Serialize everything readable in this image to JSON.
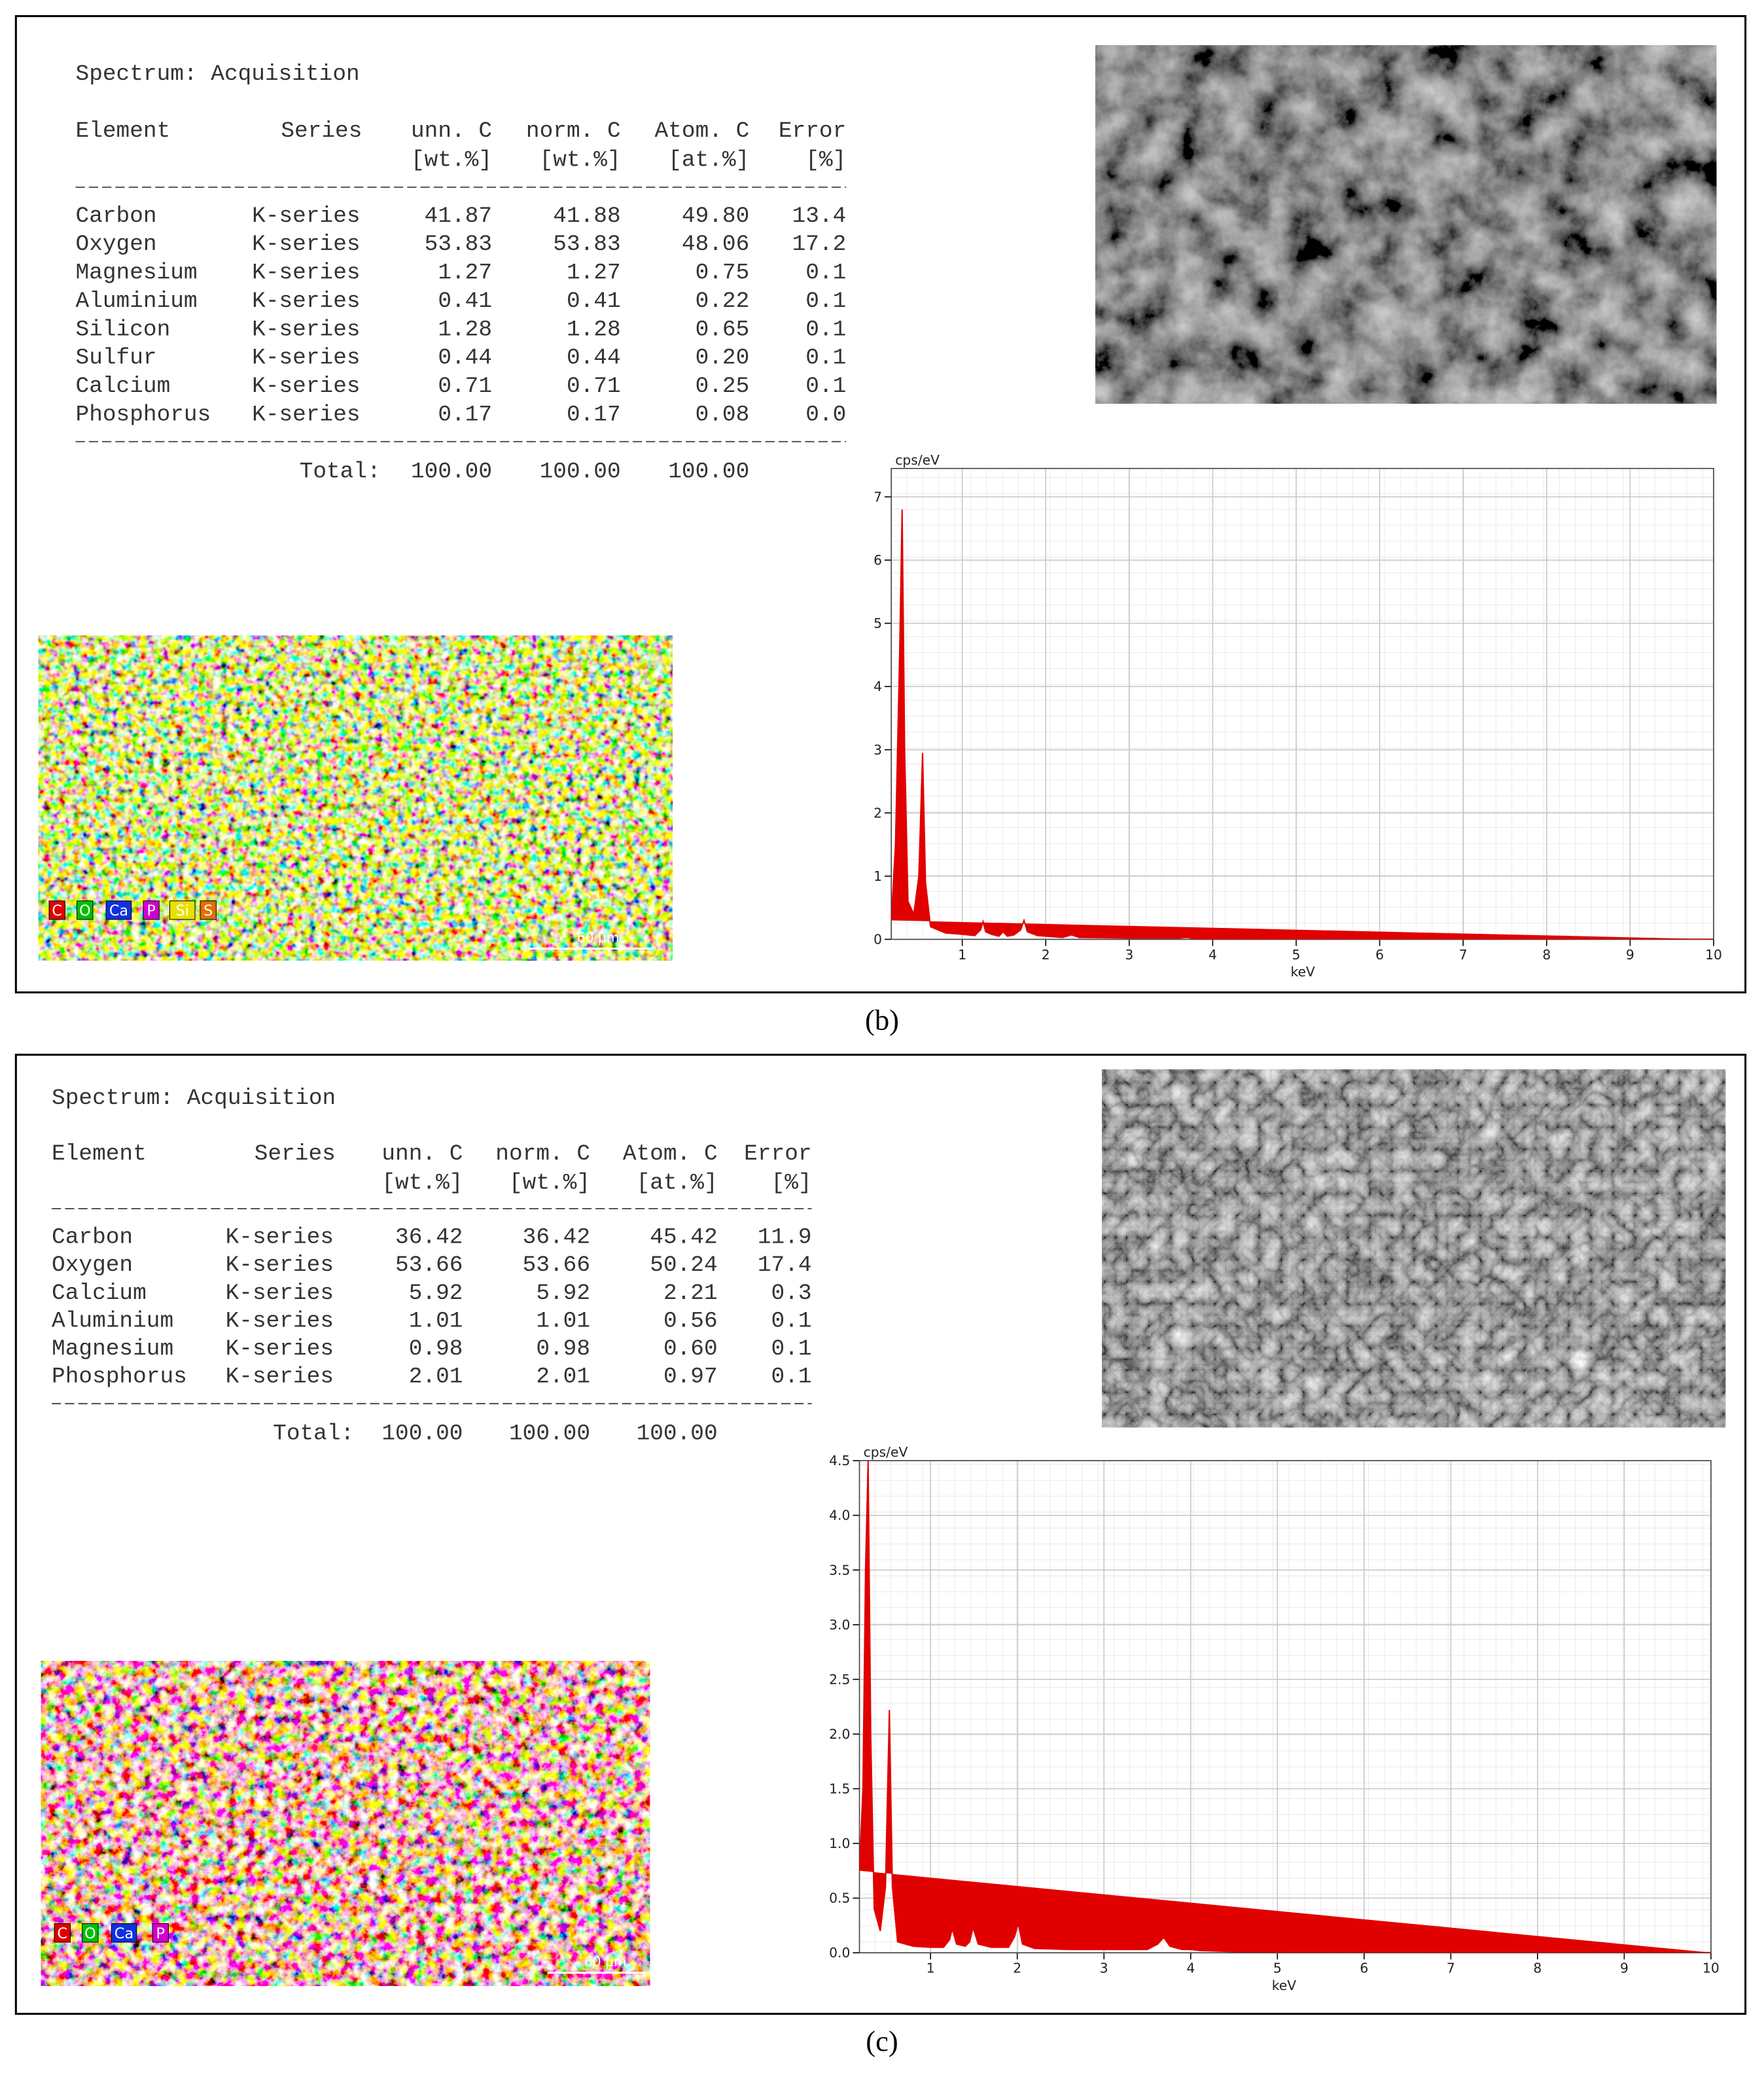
{
  "panels": [
    {
      "label": "(b)",
      "table": {
        "title": "Spectrum: Acquisition",
        "header": [
          "Element",
          "Series",
          "unn. C",
          "norm. C",
          "Atom. C",
          "Error"
        ],
        "units": [
          "[wt.%]",
          "[wt.%]",
          "[at.%]",
          "[%]"
        ],
        "rows": [
          [
            "Carbon",
            "K-series",
            "41.87",
            "41.88",
            "49.80",
            "13.4"
          ],
          [
            "Oxygen",
            "K-series",
            "53.83",
            "53.83",
            "48.06",
            "17.2"
          ],
          [
            "Magnesium",
            "K-series",
            "1.27",
            "1.27",
            "0.75",
            "0.1"
          ],
          [
            "Aluminium",
            "K-series",
            "0.41",
            "0.41",
            "0.22",
            "0.1"
          ],
          [
            "Silicon",
            "K-series",
            "1.28",
            "1.28",
            "0.65",
            "0.1"
          ],
          [
            "Sulfur",
            "K-series",
            "0.44",
            "0.44",
            "0.20",
            "0.1"
          ],
          [
            "Calcium",
            "K-series",
            "0.71",
            "0.71",
            "0.25",
            "0.1"
          ],
          [
            "Phosphorus",
            "K-series",
            "0.17",
            "0.17",
            "0.08",
            "0.0"
          ]
        ],
        "total_label": "Total:",
        "totals": [
          "100.00",
          "100.00",
          "100.00"
        ]
      },
      "map": {
        "legend": [
          {
            "name": "C",
            "color": "#e00000"
          },
          {
            "name": "O",
            "color": "#00c000"
          },
          {
            "name": "Ca",
            "color": "#1030e0"
          },
          {
            "name": "P",
            "color": "#d000d0"
          },
          {
            "name": "Si",
            "color": "#e8e000"
          },
          {
            "name": "S",
            "color": "#e07000"
          }
        ],
        "scale": "60 µm"
      },
      "spectrum": {
        "type": "area",
        "y_label": "cps/eV",
        "x_label": "keV",
        "color": "#e00000",
        "xlim": [
          0.15,
          10
        ],
        "ylim": [
          0,
          7.45
        ],
        "xticks": [
          1,
          2,
          3,
          4,
          5,
          6,
          7,
          8,
          9,
          10
        ],
        "yticks": [
          0,
          1,
          2,
          3,
          4,
          5,
          6,
          7
        ],
        "x": [
          0.15,
          0.2,
          0.25,
          0.28,
          0.31,
          0.35,
          0.42,
          0.48,
          0.525,
          0.56,
          0.62,
          0.8,
          1.0,
          1.15,
          1.22,
          1.25,
          1.28,
          1.35,
          1.44,
          1.49,
          1.54,
          1.62,
          1.7,
          1.74,
          1.78,
          1.9,
          2.2,
          2.31,
          2.4,
          3.0,
          3.6,
          3.69,
          3.78,
          4.5,
          6,
          8,
          10
        ],
        "values": [
          0.3,
          1.5,
          4.5,
          6.8,
          3.0,
          0.6,
          0.4,
          1.0,
          2.95,
          0.9,
          0.2,
          0.1,
          0.08,
          0.06,
          0.15,
          0.28,
          0.12,
          0.08,
          0.05,
          0.12,
          0.05,
          0.07,
          0.15,
          0.3,
          0.12,
          0.06,
          0.03,
          0.07,
          0.03,
          0.02,
          0.02,
          0.03,
          0.01,
          0.01,
          0.005,
          0.003,
          0.002
        ]
      }
    },
    {
      "label": "(c)",
      "table": {
        "title": "Spectrum: Acquisition",
        "header": [
          "Element",
          "Series",
          "unn. C",
          "norm. C",
          "Atom. C",
          "Error"
        ],
        "units": [
          "[wt.%]",
          "[wt.%]",
          "[at.%]",
          "[%]"
        ],
        "rows": [
          [
            "Carbon",
            "K-series",
            "36.42",
            "36.42",
            "45.42",
            "11.9"
          ],
          [
            "Oxygen",
            "K-series",
            "53.66",
            "53.66",
            "50.24",
            "17.4"
          ],
          [
            "Calcium",
            "K-series",
            "5.92",
            "5.92",
            "2.21",
            "0.3"
          ],
          [
            "Aluminium",
            "K-series",
            "1.01",
            "1.01",
            "0.56",
            "0.1"
          ],
          [
            "Magnesium",
            "K-series",
            "0.98",
            "0.98",
            "0.60",
            "0.1"
          ],
          [
            "Phosphorus",
            "K-series",
            "2.01",
            "2.01",
            "0.97",
            "0.1"
          ]
        ],
        "total_label": "Total:",
        "totals": [
          "100.00",
          "100.00",
          "100.00"
        ]
      },
      "map": {
        "legend": [
          {
            "name": "C",
            "color": "#e00000"
          },
          {
            "name": "O",
            "color": "#00c000"
          },
          {
            "name": "Ca",
            "color": "#1030e0"
          },
          {
            "name": "P",
            "color": "#d000d0"
          }
        ],
        "scale": "60 µm"
      },
      "spectrum": {
        "type": "area",
        "y_label": "cps/eV",
        "x_label": "keV",
        "color": "#e00000",
        "xlim": [
          0.18,
          10
        ],
        "ylim": [
          0,
          4.5
        ],
        "xticks": [
          1,
          2,
          3,
          4,
          5,
          6,
          7,
          8,
          9,
          10
        ],
        "yticks": [
          {
            "value": 0,
            "label": "0.0"
          },
          {
            "value": 0.5,
            "label": "0.5"
          },
          {
            "value": 1,
            "label": "1.0"
          },
          {
            "value": 1.5,
            "label": "1.5"
          },
          {
            "value": 2,
            "label": "2.0"
          },
          {
            "value": 2.5,
            "label": "2.5"
          },
          {
            "value": 3,
            "label": "3.0"
          },
          {
            "value": 3.5,
            "label": "3.5"
          },
          {
            "value": 4,
            "label": "4.0"
          },
          {
            "value": 4.5,
            "label": "4.5"
          }
        ],
        "x": [
          0.18,
          0.22,
          0.25,
          0.28,
          0.31,
          0.35,
          0.42,
          0.48,
          0.525,
          0.56,
          0.62,
          0.8,
          1.0,
          1.15,
          1.22,
          1.25,
          1.3,
          1.4,
          1.45,
          1.49,
          1.55,
          1.7,
          1.9,
          1.97,
          2.01,
          2.06,
          2.2,
          2.6,
          3.0,
          3.5,
          3.62,
          3.69,
          3.76,
          3.9,
          4.01,
          4.1,
          4.5,
          6,
          8,
          10
        ],
        "values": [
          0.75,
          1.5,
          3.5,
          4.5,
          2.0,
          0.4,
          0.2,
          0.6,
          2.22,
          0.6,
          0.1,
          0.06,
          0.05,
          0.05,
          0.12,
          0.22,
          0.08,
          0.06,
          0.1,
          0.23,
          0.08,
          0.05,
          0.05,
          0.15,
          0.27,
          0.08,
          0.04,
          0.03,
          0.03,
          0.03,
          0.08,
          0.14,
          0.06,
          0.03,
          0.03,
          0.02,
          0.01,
          0.005,
          0.003,
          0.002
        ]
      }
    }
  ]
}
